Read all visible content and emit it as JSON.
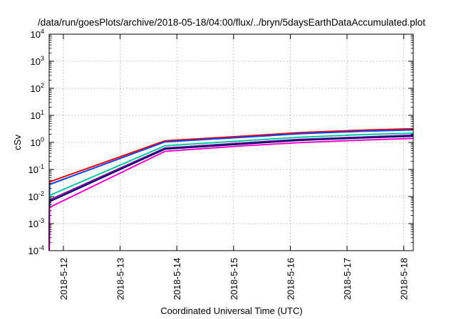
{
  "chart_data": {
    "type": "line",
    "title": "/data/run/goesPlots/archive/2018-05-18/04:00/flux/../bryn/5daysEarthDataAccumulated.plot",
    "xlabel": "Coordinated Universal Time (UTC)",
    "ylabel": "cSv",
    "x_scale": "time",
    "x_range": [
      "2018-05-11T18:00",
      "2018-05-18T04:00"
    ],
    "x_ticks": [
      "2018-5-12",
      "2018-5-13",
      "2018-5-14",
      "2018-5-15",
      "2018-5-16",
      "2018-5-17",
      "2018-5-18"
    ],
    "y_scale": "log",
    "ylim": [
      0.0001,
      10000
    ],
    "y_ticks": [
      {
        "value": 0.0001,
        "base": "10",
        "exp": "-4"
      },
      {
        "value": 0.001,
        "base": "10",
        "exp": "-3"
      },
      {
        "value": 0.01,
        "base": "10",
        "exp": "-2"
      },
      {
        "value": 0.1,
        "base": "10",
        "exp": "-1"
      },
      {
        "value": 1,
        "base": "10",
        "exp": "0"
      },
      {
        "value": 10,
        "base": "10",
        "exp": "1"
      },
      {
        "value": 100,
        "base": "10",
        "exp": "2"
      },
      {
        "value": 1000,
        "base": "10",
        "exp": "3"
      },
      {
        "value": 10000,
        "base": "10",
        "exp": "4"
      }
    ],
    "grid": true,
    "legend": "none",
    "series": [
      {
        "color": "#ff0000",
        "x": [
          "2018-05-11T18:00",
          "2018-05-11T18:10",
          "2018-05-13T19:00",
          "2018-05-15T04:00",
          "2018-05-16T04:00",
          "2018-05-17T04:00",
          "2018-05-18T04:00"
        ],
        "values": [
          0.0001,
          0.035,
          1.15,
          1.7,
          2.3,
          2.8,
          3.2
        ]
      },
      {
        "color": "#0044ff",
        "x": [
          "2018-05-11T18:00",
          "2018-05-11T18:10",
          "2018-05-13T19:00",
          "2018-05-15T04:00",
          "2018-05-16T04:00",
          "2018-05-17T04:00",
          "2018-05-18T04:00"
        ],
        "values": [
          0.0001,
          0.028,
          1.05,
          1.55,
          2.1,
          2.55,
          2.9
        ]
      },
      {
        "color": "#00c8a0",
        "x": [
          "2018-05-11T18:00",
          "2018-05-11T18:10",
          "2018-05-13T19:00",
          "2018-05-15T04:00",
          "2018-05-16T04:00",
          "2018-05-17T04:00",
          "2018-05-18T04:00"
        ],
        "values": [
          0.0001,
          0.011,
          0.75,
          1.15,
          1.55,
          1.9,
          2.2
        ]
      },
      {
        "color": "#8000a0",
        "x": [
          "2018-05-11T18:00",
          "2018-05-11T18:10",
          "2018-05-13T19:00",
          "2018-05-15T04:00",
          "2018-05-16T04:00",
          "2018-05-17T04:00",
          "2018-05-18T04:00"
        ],
        "values": [
          0.0001,
          0.0075,
          0.62,
          0.95,
          1.3,
          1.55,
          1.85
        ]
      },
      {
        "color": "#000066",
        "x": [
          "2018-05-11T18:00",
          "2018-05-11T18:10",
          "2018-05-13T19:00",
          "2018-05-15T04:00",
          "2018-05-16T04:00",
          "2018-05-17T04:00",
          "2018-05-18T04:00"
        ],
        "values": [
          0.0001,
          0.0065,
          0.57,
          0.88,
          1.2,
          1.45,
          1.7
        ]
      },
      {
        "color": "#ff00cc",
        "x": [
          "2018-05-11T18:00",
          "2018-05-11T18:10",
          "2018-05-13T19:00",
          "2018-05-15T04:00",
          "2018-05-16T04:00",
          "2018-05-17T04:00",
          "2018-05-18T04:00"
        ],
        "values": [
          0.0001,
          0.004,
          0.47,
          0.75,
          0.98,
          1.2,
          1.4
        ]
      }
    ]
  }
}
